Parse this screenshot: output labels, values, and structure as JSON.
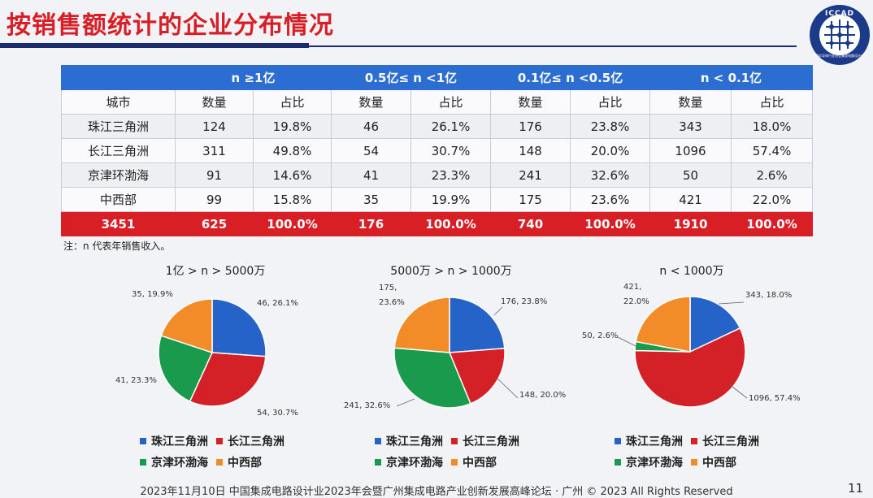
{
  "title": "按销售额统计的企业分布情况",
  "logo": {
    "text": "ICCAD",
    "subtext": "中国半导体行业协会集成电路设计分会"
  },
  "table": {
    "band_headers": [
      "n ≥1亿",
      "0.5亿≤ n <1亿",
      "0.1亿≤ n <0.5亿",
      "n < 0.1亿"
    ],
    "sub_headers": [
      "城市",
      "数量",
      "占比",
      "数量",
      "占比",
      "数量",
      "占比",
      "数量",
      "占比"
    ],
    "rows": [
      [
        "珠江三角洲",
        "124",
        "19.8%",
        "46",
        "26.1%",
        "176",
        "23.8%",
        "343",
        "18.0%"
      ],
      [
        "长江三角洲",
        "311",
        "49.8%",
        "54",
        "30.7%",
        "148",
        "20.0%",
        "1096",
        "57.4%"
      ],
      [
        "京津环渤海",
        "91",
        "14.6%",
        "41",
        "23.3%",
        "241",
        "32.6%",
        "50",
        "2.6%"
      ],
      [
        "中西部",
        "99",
        "15.8%",
        "35",
        "19.9%",
        "175",
        "23.6%",
        "421",
        "22.0%"
      ]
    ],
    "total_row": [
      "3451",
      "625",
      "100.0%",
      "176",
      "100.0%",
      "740",
      "100.0%",
      "1910",
      "100.0%"
    ]
  },
  "note": "注：n 代表年销售收入。",
  "legend": {
    "labels": [
      "珠江三角洲",
      "长江三角洲",
      "京津环渤海",
      "中西部"
    ],
    "colors": [
      "#2563c9",
      "#d42027",
      "#1a9a4c",
      "#f28c28"
    ]
  },
  "chart_data": [
    {
      "type": "pie",
      "title": "1亿 > n > 5000万",
      "categories": [
        "珠江三角洲",
        "长江三角洲",
        "京津环渤海",
        "中西部"
      ],
      "values": [
        46,
        54,
        41,
        35
      ],
      "data_labels": [
        "46, 26.1%",
        "54, 30.7%",
        "41, 23.3%",
        "35, 19.9%"
      ]
    },
    {
      "type": "pie",
      "title": "5000万 > n > 1000万",
      "categories": [
        "珠江三角洲",
        "长江三角洲",
        "京津环渤海",
        "中西部"
      ],
      "values": [
        176,
        148,
        241,
        175
      ],
      "data_labels": [
        "176, 23.8%",
        "148, 20.0%",
        "241, 32.6%",
        "175,\n23.6%"
      ]
    },
    {
      "type": "pie",
      "title": "n < 1000万",
      "categories": [
        "珠江三角洲",
        "长江三角洲",
        "京津环渤海",
        "中西部"
      ],
      "values": [
        343,
        1096,
        50,
        421
      ],
      "data_labels": [
        "343, 18.0%",
        "1096, 57.4%",
        "50, 2.6%",
        "421,\n22.0%"
      ]
    }
  ],
  "footer": "2023年11月10日 中国集成电路设计业2023年会暨广州集成电路产业创新发展高峰论坛 · 广州 © 2023 All Rights Reserved",
  "page_number": "11"
}
